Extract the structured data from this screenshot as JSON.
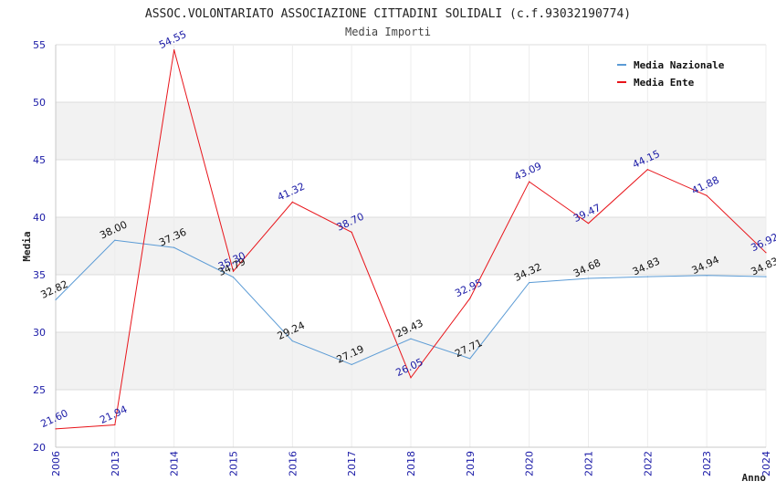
{
  "chart_data": {
    "type": "line",
    "title": "ASSOC.VOLONTARIATO ASSOCIAZIONE CITTADINI SOLIDALI (c.f.93032190774)",
    "subtitle": "Media Importi",
    "xlabel": "Anno",
    "ylabel": "Media",
    "ylim": [
      20,
      55
    ],
    "yticks": [
      20,
      25,
      30,
      35,
      40,
      45,
      50,
      55
    ],
    "grid": true,
    "legend_position": "top-right",
    "categories": [
      "2006",
      "2013",
      "2014",
      "2015",
      "2016",
      "2017",
      "2018",
      "2019",
      "2020",
      "2021",
      "2022",
      "2023",
      "2024"
    ],
    "series": [
      {
        "name": "Media Nazionale",
        "color": "#5b9bd5",
        "values": [
          32.82,
          38.0,
          37.36,
          34.79,
          29.24,
          27.19,
          29.43,
          27.71,
          34.32,
          34.68,
          34.83,
          34.94,
          34.83
        ],
        "labels": [
          "32.82",
          "38.00",
          "37.36",
          "34.79",
          "29.24",
          "27.19",
          "29.43",
          "27.71",
          "34.32",
          "34.68",
          "34.83",
          "34.94",
          "34.83"
        ]
      },
      {
        "name": "Media Ente",
        "color": "#e8141a",
        "values": [
          21.6,
          21.94,
          54.55,
          35.3,
          41.32,
          38.7,
          26.05,
          32.95,
          43.09,
          39.47,
          44.15,
          41.88,
          36.92
        ],
        "labels": [
          "21.60",
          "21.94",
          "54.55",
          "35.30",
          "41.32",
          "38.70",
          "26.05",
          "32.95",
          "43.09",
          "39.47",
          "44.15",
          "41.88",
          "36.92"
        ]
      }
    ]
  }
}
